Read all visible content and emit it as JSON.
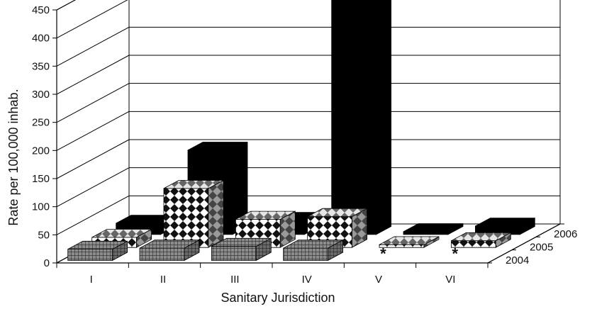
{
  "chart_data": {
    "type": "bar",
    "subtype": "3d-grouped-bar",
    "xlabel": "Sanitary Jurisdiction",
    "ylabel": "Rate per 100,000 inhab.",
    "ylim": [
      0,
      450
    ],
    "yticks": [
      0,
      50,
      100,
      150,
      200,
      250,
      300,
      350,
      400,
      450
    ],
    "grid": true,
    "categories": [
      "I",
      "II",
      "III",
      "IV",
      "V",
      "VI"
    ],
    "series": [
      {
        "name": "2004",
        "values": [
          20,
          22,
          25,
          22,
          0,
          0
        ],
        "pattern": "grid-gray",
        "zero_marker": "*"
      },
      {
        "name": "2005",
        "values": [
          18,
          105,
          50,
          55,
          5,
          12
        ],
        "pattern": "checker-diamond"
      },
      {
        "name": "2006",
        "values": [
          20,
          150,
          25,
          440,
          5,
          15
        ],
        "pattern": "solid-black"
      }
    ]
  }
}
